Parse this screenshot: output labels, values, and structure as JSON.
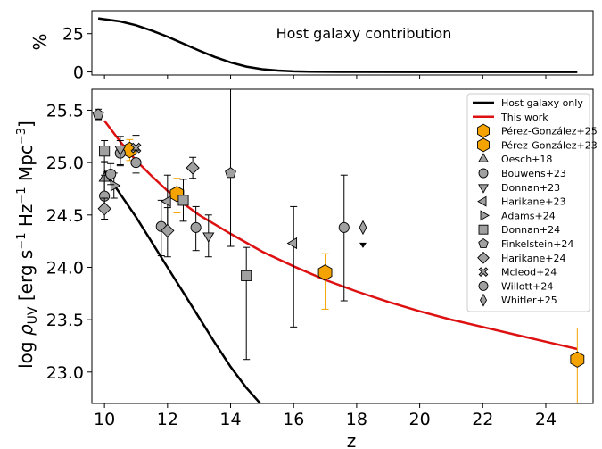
{
  "top_panel": {
    "annotation": "Host galaxy contribution",
    "ylabel": "%",
    "yticks": [
      "0",
      "25"
    ]
  },
  "main_panel": {
    "xlabel": "z",
    "ylabel_prefix": "log ",
    "ylabel_rho": "ρ",
    "ylabel_sub": "UV",
    "ylabel_units_pre": " [erg s",
    "ylabel_exp1": "−1",
    "ylabel_mid": " Hz",
    "ylabel_exp2": "−1",
    "ylabel_mpc": " Mpc",
    "ylabel_exp3": "−3",
    "ylabel_close": "]"
  },
  "chart_data": [
    {
      "type": "line",
      "panel": "top",
      "title": "",
      "annotation": "Host galaxy contribution",
      "xlabel": "",
      "ylabel": "%",
      "xlim": [
        9.6,
        25.5
      ],
      "ylim": [
        -2,
        40
      ],
      "yticks": [
        0,
        25
      ],
      "grid": false,
      "series": [
        {
          "name": "",
          "color": "#000000",
          "x": [
            9.8,
            10.5,
            11.0,
            11.5,
            12.0,
            12.5,
            13.0,
            13.5,
            14.0,
            14.5,
            15.0,
            15.5,
            16.0,
            16.5,
            17.0,
            18.0,
            20.0,
            22.0,
            25.0
          ],
          "y": [
            35.0,
            33.0,
            30.5,
            27.0,
            23.0,
            18.5,
            14.0,
            9.8,
            6.2,
            3.5,
            1.8,
            0.9,
            0.4,
            0.2,
            0.1,
            0.05,
            0.0,
            0.0,
            0.0
          ]
        }
      ]
    },
    {
      "type": "scatter",
      "panel": "main",
      "title": "",
      "xlabel": "z",
      "ylabel": "log ρUV [erg s−1 Hz−1 Mpc−3]",
      "xlim": [
        9.6,
        25.5
      ],
      "ylim": [
        22.7,
        25.7
      ],
      "xticks": [
        10,
        12,
        14,
        16,
        18,
        20,
        22,
        24
      ],
      "yticks": [
        23.0,
        23.5,
        24.0,
        24.5,
        25.0,
        25.5
      ],
      "grid": false,
      "legend_position": "top-right",
      "lines": [
        {
          "name": "Host galaxy only",
          "color": "#000000",
          "x": [
            10.0,
            10.5,
            11.0,
            11.5,
            12.0,
            12.5,
            13.0,
            13.5,
            14.0,
            14.5,
            15.0,
            15.2
          ],
          "y": [
            24.92,
            24.7,
            24.48,
            24.24,
            24.0,
            23.76,
            23.52,
            23.28,
            23.05,
            22.85,
            22.68,
            22.62
          ]
        },
        {
          "name": "This work",
          "color": "#dd1111",
          "x": [
            10.0,
            10.5,
            11.0,
            11.5,
            12.0,
            12.5,
            13.0,
            14.0,
            15.0,
            16.0,
            17.0,
            18.0,
            19.0,
            20.0,
            21.0,
            22.0,
            23.0,
            24.0,
            25.0
          ],
          "y": [
            25.4,
            25.2,
            25.02,
            24.87,
            24.73,
            24.61,
            24.5,
            24.32,
            24.15,
            24.01,
            23.88,
            23.77,
            23.67,
            23.58,
            23.5,
            23.43,
            23.36,
            23.29,
            23.22
          ]
        }
      ],
      "series": [
        {
          "name": "Pérez-González+25",
          "marker": "hexagon",
          "color": "#f5a300",
          "points": [
            {
              "x": 10.8,
              "y": 25.12,
              "yerr": [
                0.1,
                0.1
              ]
            },
            {
              "x": 17.0,
              "y": 23.95,
              "yerr": [
                0.35,
                0.18
              ]
            }
          ]
        },
        {
          "name": "Pérez-González+23",
          "marker": "hexagon",
          "color": "#f5a300",
          "points": [
            {
              "x": 12.3,
              "y": 24.7,
              "yerr": [
                0.18,
                0.15
              ]
            },
            {
              "x": 25.0,
              "y": 23.12,
              "yerr": [
                0.45,
                0.3
              ]
            }
          ]
        },
        {
          "name": "Oesch+18",
          "marker": "triangle-up",
          "color": "#a0a0a0",
          "points": [
            {
              "x": 10.0,
              "y": 24.85,
              "yerr": [
                0.2,
                0.15
              ]
            }
          ]
        },
        {
          "name": "Bouwens+23",
          "marker": "circle",
          "color": "#a0a0a0",
          "points": [
            {
              "x": 10.0,
              "y": 24.68,
              "yerr": [
                0.15,
                0.2
              ]
            },
            {
              "x": 10.5,
              "y": 25.09,
              "yerr": [
                0.12,
                0.12
              ]
            },
            {
              "x": 11.8,
              "y": 24.39,
              "yerr": [
                0.28,
                0.25
              ]
            },
            {
              "x": 12.9,
              "y": 24.38,
              "yerr": [
                0.22,
                0.2
              ]
            }
          ]
        },
        {
          "name": "Donnan+23",
          "marker": "triangle-down",
          "color": "#a0a0a0",
          "points": [
            {
              "x": 10.5,
              "y": 25.13,
              "yerr": [
                0.15,
                0.12
              ]
            },
            {
              "x": 13.3,
              "y": 24.3,
              "yerr": [
                0.2,
                0.2
              ]
            }
          ]
        },
        {
          "name": "Harikane+23",
          "marker": "triangle-left",
          "color": "#a0a0a0",
          "points": [
            {
              "x": 12.0,
              "y": 24.63,
              "yerr": [
                0.3,
                0.25
              ]
            },
            {
              "x": 16.0,
              "y": 24.23,
              "yerr": [
                0.8,
                0.35
              ]
            }
          ]
        },
        {
          "name": "Adams+24",
          "marker": "triangle-right",
          "color": "#a0a0a0",
          "points": [
            {
              "x": 10.3,
              "y": 24.78,
              "yerr": [
                0.12,
                0.12
              ]
            }
          ]
        },
        {
          "name": "Donnan+24",
          "marker": "square",
          "color": "#a0a0a0",
          "points": [
            {
              "x": 10.0,
              "y": 25.11,
              "yerr": [
                0.1,
                0.1
              ]
            },
            {
              "x": 12.5,
              "y": 24.64,
              "yerr": [
                0.2,
                0.2
              ]
            },
            {
              "x": 14.5,
              "y": 23.92,
              "yerr": [
                0.8,
                0.27
              ]
            }
          ]
        },
        {
          "name": "Finkelstein+24",
          "marker": "pentagon",
          "color": "#a0a0a0",
          "points": [
            {
              "x": 9.8,
              "y": 25.46,
              "yerr": [
                0.05,
                0.05
              ]
            },
            {
              "x": 14.0,
              "y": 24.9,
              "yerr": [
                0.7,
                0.8
              ]
            }
          ]
        },
        {
          "name": "Harikane+24",
          "marker": "diamond",
          "color": "#a0a0a0",
          "points": [
            {
              "x": 10.0,
              "y": 24.56,
              "yerr": [
                0.1,
                0.1
              ]
            },
            {
              "x": 12.0,
              "y": 24.35,
              "yerr": [
                0.25,
                0.22
              ]
            },
            {
              "x": 12.8,
              "y": 24.95,
              "yerr": [
                0.1,
                0.1
              ]
            }
          ]
        },
        {
          "name": "Mcleod+24",
          "marker": "x",
          "color": "#a0a0a0",
          "points": [
            {
              "x": 11.0,
              "y": 25.14,
              "yerr": [
                0.12,
                0.12
              ]
            }
          ]
        },
        {
          "name": "Willott+24",
          "marker": "circle",
          "color": "#a0a0a0",
          "points": [
            {
              "x": 10.2,
              "y": 24.89,
              "yerr": [
                0.1,
                0.1
              ]
            },
            {
              "x": 11.0,
              "y": 25.0,
              "yerr": [
                0.1,
                0.12
              ]
            },
            {
              "x": 17.6,
              "y": 24.38,
              "yerr": [
                0.7,
                0.5
              ]
            }
          ]
        },
        {
          "name": "Whitler+25",
          "marker": "thin-diamond",
          "color": "#a0a0a0",
          "points": [
            {
              "x": 18.2,
              "y": 24.38,
              "upper_limit": true
            }
          ]
        }
      ]
    }
  ]
}
